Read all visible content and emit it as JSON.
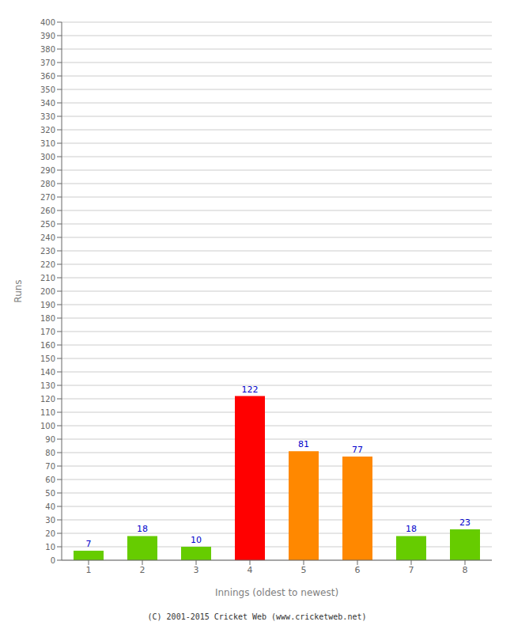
{
  "chart_data": {
    "type": "bar",
    "categories": [
      "1",
      "2",
      "3",
      "4",
      "5",
      "6",
      "7",
      "8"
    ],
    "values": [
      7,
      18,
      10,
      122,
      81,
      77,
      18,
      23
    ],
    "colors": [
      "#66cc00",
      "#66cc00",
      "#66cc00",
      "#ff0000",
      "#ff8800",
      "#ff8800",
      "#66cc00",
      "#66cc00"
    ],
    "x_label": "Innings (oldest to newest)",
    "y_label": "Runs",
    "ylim": [
      0,
      400
    ],
    "yticks": [
      0,
      10,
      20,
      30,
      40,
      50,
      60,
      70,
      80,
      90,
      100,
      110,
      120,
      130,
      140,
      150,
      160,
      170,
      180,
      190,
      200,
      210,
      220,
      230,
      240,
      250,
      260,
      270,
      280,
      290,
      300,
      310,
      320,
      330,
      340,
      350,
      360,
      370,
      380,
      390,
      400
    ],
    "grid": true,
    "data_labels": true,
    "annotations": [
      "(C) 2001-2015 Cricket Web (www.cricketweb.net)"
    ]
  }
}
